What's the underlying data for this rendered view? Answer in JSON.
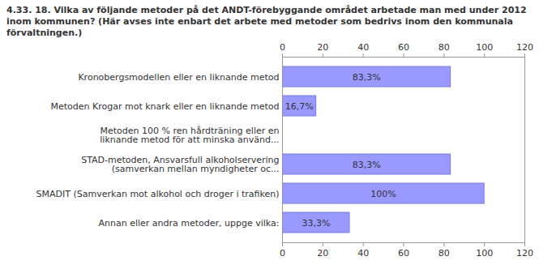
{
  "chart_data": {
    "type": "bar",
    "orientation": "horizontal",
    "title": "4.33. 18. Vilka av följande metoder på det ANDT-förebyggande området arbetade man med under 2012 inom kommunen? (Här avses inte enbart det arbete med metoder som bedrivs inom den kommunala förvaltningen.)",
    "categories": [
      "Kronobergsmodellen eller en liknande metod",
      "Metoden Krogar mot knark eller en liknande metod",
      "Metoden 100 % ren hårdträning eller en\nliknande metod för att minska använd...",
      "STAD-metoden, Ansvarsfull alkoholservering\n(samverkan mellan myndigheter oc...",
      "SMADIT (Samverkan mot alkohol och droger i trafiken)",
      "Annan eller andra metoder, uppge vilka:"
    ],
    "values": [
      83.3,
      16.7,
      0,
      83.3,
      100,
      33.3
    ],
    "value_labels": [
      "83,3%",
      "16,7%",
      null,
      "83,3%",
      "100%",
      "33,3%"
    ],
    "color": "#9999ff",
    "xlim": [
      0,
      120
    ],
    "xticks": [
      0,
      20,
      40,
      60,
      80,
      100,
      120
    ],
    "grid": false,
    "data_labels": true
  }
}
